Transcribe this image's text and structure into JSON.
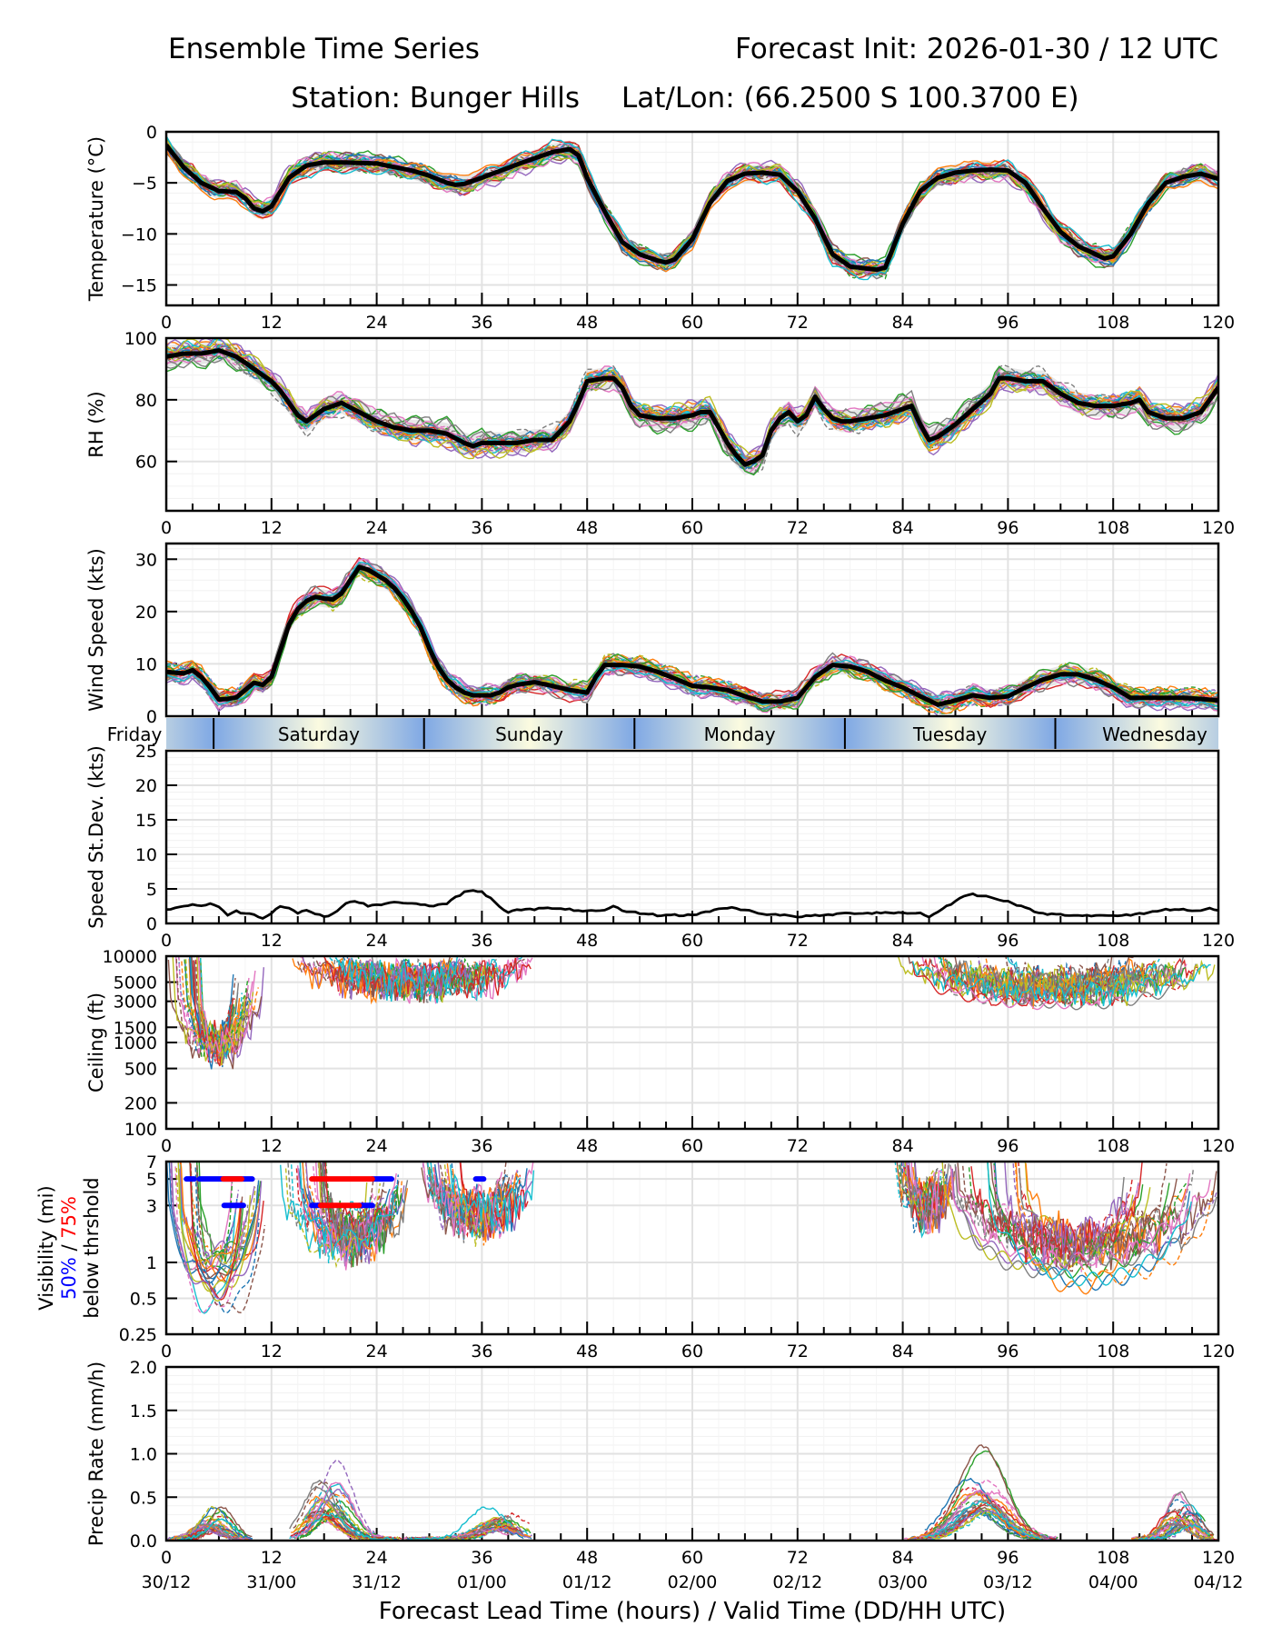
{
  "header": {
    "title_left": "Ensemble Time Series",
    "title_right": "Forecast Init: 2026-01-30 / 12 UTC",
    "subtitle_station": "Station: Bunger Hills",
    "subtitle_latlon": "Lat/Lon: (66.2500 S 100.3700 E)"
  },
  "xaxis": {
    "label": "Forecast Lead Time (hours) / Valid Time (DD/HH UTC)",
    "ticks": [
      0,
      12,
      24,
      36,
      48,
      60,
      72,
      84,
      96,
      108,
      120
    ],
    "tick_labels": [
      "0",
      "12",
      "24",
      "36",
      "48",
      "60",
      "72",
      "84",
      "96",
      "108",
      "120"
    ],
    "valid_labels": [
      "30/12",
      "31/00",
      "31/12",
      "01/00",
      "01/12",
      "02/00",
      "02/12",
      "03/00",
      "03/12",
      "04/00",
      "04/12"
    ],
    "range": [
      0,
      120
    ]
  },
  "day_band": {
    "first_label": "Friday",
    "days": [
      {
        "label": "Saturday",
        "start": 5.4,
        "end": 29.4
      },
      {
        "label": "Sunday",
        "start": 29.4,
        "end": 53.4
      },
      {
        "label": "Monday",
        "start": 53.4,
        "end": 77.4
      },
      {
        "label": "Tuesday",
        "start": 77.4,
        "end": 101.4
      },
      {
        "label": "Wednesday",
        "start": 101.4,
        "end": 125.4
      }
    ],
    "colors": {
      "edge": "#7fa8e4",
      "center": "#fbfbe0"
    }
  },
  "visibility_legend": {
    "line1": "Visibility (mi)",
    "pct50": "50%",
    "sep": " / ",
    "pct75": "75%",
    "line3": "below thrshold",
    "color50": "#0000ff",
    "color75": "#ff0000"
  },
  "chart_data": [
    {
      "id": "temperature",
      "type": "line",
      "ylabel": "Temperature (°C)",
      "ylim": [
        -17,
        0
      ],
      "yticks": [
        0,
        -5,
        -10,
        -15
      ],
      "ytick_labels": [
        "0",
        "−5",
        "−10",
        "−15"
      ],
      "scale": "linear",
      "grid": true,
      "mean": {
        "x": [
          0,
          2,
          4,
          6,
          8,
          9,
          10,
          11,
          12,
          14,
          16,
          18,
          20,
          24,
          28,
          30,
          32,
          33,
          34,
          36,
          40,
          44,
          46,
          47,
          48,
          50,
          52,
          54,
          56,
          57,
          58,
          60,
          62,
          64,
          66,
          68,
          70,
          72,
          74,
          76,
          78,
          80,
          81,
          82,
          84,
          86,
          88,
          90,
          92,
          94,
          96,
          98,
          100,
          102,
          104,
          106,
          107,
          108,
          110,
          112,
          114,
          116,
          118,
          120
        ],
        "y": [
          -1.3,
          -3.5,
          -5.0,
          -5.8,
          -5.9,
          -6.5,
          -7.5,
          -7.8,
          -7.3,
          -4.5,
          -3.3,
          -3.0,
          -3.0,
          -3.1,
          -3.8,
          -4.3,
          -5.0,
          -5.2,
          -5.1,
          -4.5,
          -3.2,
          -2.0,
          -1.7,
          -2.3,
          -4.5,
          -7.8,
          -10.8,
          -12.0,
          -12.6,
          -12.8,
          -12.5,
          -10.5,
          -7.0,
          -4.8,
          -4.1,
          -4.0,
          -4.2,
          -5.8,
          -8.5,
          -12.0,
          -13.2,
          -13.4,
          -13.5,
          -13.3,
          -9.0,
          -5.8,
          -4.5,
          -4.0,
          -3.8,
          -3.7,
          -3.8,
          -5.0,
          -7.5,
          -9.8,
          -11.2,
          -12.0,
          -12.4,
          -12.2,
          -10.0,
          -7.0,
          -5.0,
          -4.4,
          -4.1,
          -4.6
        ]
      },
      "spread": 0.6,
      "members": 30
    },
    {
      "id": "rh",
      "type": "line",
      "ylabel": "RH (%)",
      "ylim": [
        44,
        100
      ],
      "yticks": [
        100,
        80,
        60
      ],
      "ytick_labels": [
        "100",
        "80",
        "60"
      ],
      "scale": "linear",
      "grid": true,
      "mean": {
        "x": [
          0,
          2,
          4,
          6,
          8,
          10,
          11,
          12,
          13,
          14,
          15,
          16,
          17,
          18,
          20,
          22,
          24,
          26,
          28,
          30,
          32,
          34,
          35,
          36,
          38,
          40,
          42,
          44,
          46,
          47,
          48,
          50,
          51,
          52,
          53,
          54,
          56,
          58,
          60,
          61,
          62,
          63,
          64,
          65,
          66,
          67,
          68,
          69,
          70,
          71,
          72,
          73,
          74,
          75,
          76,
          77,
          78,
          80,
          82,
          84,
          85,
          86,
          87,
          88,
          90,
          92,
          94,
          95,
          96,
          98,
          100,
          102,
          104,
          106,
          108,
          110,
          111,
          112,
          114,
          116,
          118,
          119,
          120
        ],
        "y": [
          94,
          95,
          95,
          96,
          94,
          90,
          88,
          86,
          83,
          79,
          75,
          73,
          75,
          77,
          79,
          76,
          73,
          71,
          70,
          70,
          69,
          66,
          65,
          66,
          66,
          66,
          67,
          67,
          73,
          79,
          86,
          87,
          87,
          84,
          78,
          75,
          74,
          74,
          75,
          76,
          76,
          71,
          66,
          62,
          59,
          60,
          62,
          70,
          74,
          76,
          73,
          75,
          81,
          77,
          74,
          73,
          73,
          74,
          75,
          77,
          78,
          72,
          67,
          68,
          72,
          77,
          82,
          87,
          87,
          86,
          86,
          82,
          79,
          78,
          78,
          79,
          80,
          76,
          74,
          74,
          76,
          80,
          84
        ]
      },
      "spread": 2.5,
      "members": 30
    },
    {
      "id": "wind_speed",
      "type": "line",
      "ylabel": "Wind Speed (kts)",
      "ylim": [
        0,
        33
      ],
      "yticks": [
        0,
        10,
        20,
        30
      ],
      "ytick_labels": [
        "0",
        "10",
        "20",
        "30"
      ],
      "scale": "linear",
      "grid": true,
      "mean": {
        "x": [
          0,
          1,
          2,
          3,
          4,
          5,
          6,
          7,
          8,
          9,
          10,
          11,
          12,
          13,
          14,
          15,
          16,
          17,
          18,
          19,
          20,
          21,
          22,
          23,
          24,
          25,
          26,
          27,
          28,
          29,
          30,
          31,
          32,
          33,
          34,
          35,
          36,
          37,
          38,
          39,
          40,
          42,
          44,
          46,
          48,
          49,
          50,
          52,
          54,
          56,
          58,
          60,
          62,
          64,
          66,
          68,
          70,
          72,
          74,
          76,
          78,
          80,
          82,
          84,
          86,
          88,
          90,
          92,
          94,
          96,
          98,
          100,
          102,
          104,
          106,
          108,
          110,
          112,
          114,
          116,
          118,
          120
        ],
        "y": [
          8.5,
          8.3,
          8.2,
          8.8,
          7.5,
          5.5,
          3.2,
          3.3,
          3.6,
          5.0,
          6.4,
          6.0,
          7.5,
          12.5,
          17.5,
          20.5,
          22.0,
          22.8,
          22.5,
          22.3,
          23.5,
          26.0,
          28.5,
          28.0,
          27.0,
          26.0,
          24.5,
          22.5,
          20.0,
          17.0,
          13.0,
          9.5,
          7.0,
          5.5,
          4.5,
          4.0,
          4.0,
          4.0,
          4.5,
          5.5,
          6.0,
          6.5,
          5.8,
          5.0,
          4.5,
          7.5,
          9.8,
          9.8,
          9.5,
          8.5,
          7.2,
          5.8,
          5.5,
          5.0,
          3.8,
          2.8,
          2.8,
          3.5,
          7.5,
          9.8,
          9.5,
          8.5,
          6.8,
          5.5,
          3.8,
          2.2,
          3.0,
          4.0,
          3.5,
          3.8,
          5.5,
          7.0,
          8.0,
          8.0,
          7.0,
          5.5,
          3.5,
          3.5,
          3.5,
          3.5,
          3.3,
          3.0
        ]
      },
      "spread": 1.2,
      "members": 30
    },
    {
      "id": "speed_stdev",
      "type": "line",
      "ylabel": "Speed St.Dev. (kts)",
      "ylim": [
        0,
        25
      ],
      "yticks": [
        0,
        5,
        10,
        15,
        20,
        25
      ],
      "ytick_labels": [
        "0",
        "5",
        "10",
        "15",
        "20",
        "25"
      ],
      "scale": "linear",
      "grid": true,
      "series": {
        "x": [
          0,
          1,
          2,
          3,
          4,
          5,
          6,
          7,
          8,
          9,
          10,
          11,
          12,
          13,
          14,
          15,
          16,
          17,
          18,
          19,
          20,
          21,
          22,
          23,
          24,
          26,
          28,
          30,
          32,
          33,
          34,
          35,
          36,
          37,
          38,
          39,
          40,
          41,
          42,
          43,
          44,
          46,
          48,
          50,
          51,
          52,
          54,
          56,
          58,
          60,
          62,
          64,
          66,
          68,
          70,
          72,
          74,
          76,
          78,
          80,
          82,
          84,
          86,
          87,
          88,
          89,
          90,
          91,
          92,
          94,
          96,
          98,
          100,
          102,
          104,
          106,
          108,
          110,
          112,
          114,
          116,
          118,
          119,
          120
        ],
        "y": [
          2.0,
          2.2,
          2.5,
          2.8,
          2.5,
          2.9,
          2.3,
          1.3,
          1.8,
          1.4,
          1.3,
          0.8,
          1.5,
          2.6,
          2.2,
          1.5,
          2.0,
          1.4,
          1.0,
          1.3,
          2.5,
          3.2,
          3.1,
          2.5,
          2.7,
          3.0,
          3.0,
          2.5,
          2.8,
          3.8,
          4.5,
          4.7,
          4.6,
          3.6,
          2.5,
          1.6,
          2.1,
          2.0,
          2.0,
          2.3,
          2.1,
          2.0,
          1.8,
          1.8,
          2.5,
          1.8,
          1.5,
          1.2,
          1.2,
          1.2,
          1.8,
          2.3,
          2.0,
          1.4,
          1.2,
          1.0,
          1.1,
          1.3,
          1.5,
          1.5,
          1.6,
          1.5,
          1.5,
          1.0,
          1.6,
          2.5,
          3.2,
          4.0,
          4.2,
          3.8,
          3.2,
          2.2,
          1.4,
          1.3,
          1.2,
          1.1,
          1.1,
          1.2,
          1.6,
          2.0,
          2.0,
          1.9,
          2.2,
          1.8
        ]
      }
    },
    {
      "id": "ceiling",
      "type": "line",
      "ylabel": "Ceiling (ft)",
      "ylim": [
        100,
        10000
      ],
      "yticks": [
        10000,
        5000,
        3000,
        1500,
        1000,
        500,
        200,
        100
      ],
      "ytick_labels": [
        "10000",
        "5000",
        "3000",
        "1500",
        "1000",
        "500",
        "200",
        "100"
      ],
      "scale": "log",
      "grid": true,
      "events": [
        {
          "start": 0,
          "end": 11.5,
          "min": 400,
          "typical": 900
        },
        {
          "start": 14,
          "end": 42,
          "min": 2700,
          "typical": 5000
        },
        {
          "start": 83,
          "end": 120,
          "min": 1800,
          "typical": 4500
        }
      ],
      "members": 30
    },
    {
      "id": "visibility",
      "type": "line",
      "ylabel": "Visibility (mi)",
      "ylim": [
        0.25,
        7
      ],
      "yticks": [
        7,
        5,
        3,
        1,
        0.5,
        0.25
      ],
      "ytick_labels": [
        "7",
        "5",
        "3",
        "1",
        "0.5",
        "0.25"
      ],
      "scale": "log",
      "grid": true,
      "threshold_bars": [
        {
          "threshold": 5,
          "level": "50%",
          "start": 2.3,
          "end": 3.2
        },
        {
          "threshold": 5,
          "level": "50%",
          "start": 3.8,
          "end": 9.8
        },
        {
          "threshold": 5,
          "level": "75%",
          "start": 6.5,
          "end": 8.6
        },
        {
          "threshold": 3,
          "level": "50%",
          "start": 6.6,
          "end": 8.8
        },
        {
          "threshold": 5,
          "level": "75%",
          "start": 16.6,
          "end": 23.5
        },
        {
          "threshold": 5,
          "level": "50%",
          "start": 23.5,
          "end": 25.7
        },
        {
          "threshold": 3,
          "level": "50%",
          "start": 16.6,
          "end": 17.6
        },
        {
          "threshold": 3,
          "level": "75%",
          "start": 17.6,
          "end": 22.0
        },
        {
          "threshold": 3,
          "level": "50%",
          "start": 22.0,
          "end": 23.5
        },
        {
          "threshold": 5,
          "level": "50%",
          "start": 35.3,
          "end": 36.2
        }
      ],
      "events": [
        {
          "start": 0,
          "end": 11.5,
          "min": 0.25,
          "typical": 1.5
        },
        {
          "start": 13,
          "end": 28,
          "min": 0.8,
          "typical": 1.6
        },
        {
          "start": 29,
          "end": 42,
          "min": 1.1,
          "typical": 2.5
        },
        {
          "start": 83,
          "end": 90,
          "min": 1.8,
          "typical": 3.0
        },
        {
          "start": 88,
          "end": 120,
          "min": 0.4,
          "typical": 1.5
        }
      ],
      "members": 30
    },
    {
      "id": "precip_rate",
      "type": "line",
      "ylabel": "Precip Rate (mm/h)",
      "ylim": [
        0,
        2.0
      ],
      "yticks": [
        0,
        0.5,
        1.0,
        1.5,
        2.0
      ],
      "ytick_labels": [
        "0.0",
        "0.5",
        "1.0",
        "1.5",
        "2.0"
      ],
      "scale": "linear",
      "grid": true,
      "events": [
        {
          "start": 0,
          "end": 10,
          "peak_t": 5,
          "max": 0.4
        },
        {
          "start": 14,
          "end": 27,
          "peak_t": 18.5,
          "max": 0.93
        },
        {
          "start": 27,
          "end": 42,
          "peak_t": 38,
          "max": 0.4
        },
        {
          "start": 84,
          "end": 102,
          "peak_t": 93,
          "max": 1.17
        },
        {
          "start": 110,
          "end": 120,
          "peak_t": 116,
          "max": 0.6
        }
      ],
      "members": 30
    }
  ],
  "member_colors": [
    "#1f77b4",
    "#ff7f0e",
    "#2ca02c",
    "#d62728",
    "#9467bd",
    "#8c564b",
    "#e377c2",
    "#7f7f7f",
    "#bcbd22",
    "#17becf"
  ]
}
